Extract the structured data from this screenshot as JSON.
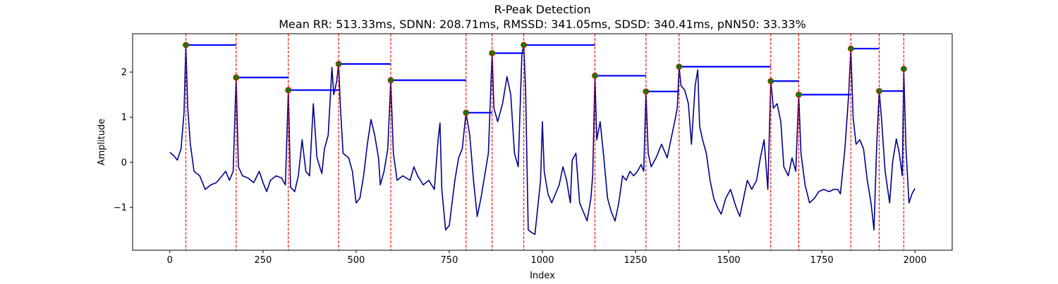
{
  "chart_data": {
    "type": "line",
    "title": "R-Peak Detection",
    "subtitle": "Mean RR: 513.33ms, SDNN: 208.71ms, RMSSD: 341.05ms, SDSD: 340.41ms, pNN50: 33.33%",
    "xlabel": "Index",
    "ylabel": "Amplitude",
    "xlim": [
      -100,
      2100
    ],
    "ylim": [
      -1.95,
      2.85
    ],
    "xticks": [
      0,
      250,
      500,
      750,
      1000,
      1250,
      1500,
      1750,
      2000
    ],
    "xtick_labels": [
      "0",
      "250",
      "500",
      "750",
      "1000",
      "1250",
      "1500",
      "1750",
      "2000"
    ],
    "yticks": [
      -1,
      0,
      1,
      2
    ],
    "ytick_labels": [
      "−1",
      "0",
      "1",
      "2"
    ],
    "grid": false,
    "colors": {
      "signal": "#00008b",
      "peaks": "#008000",
      "peak_lines": "#ff0000",
      "rr_segments": "#0000ff"
    },
    "signal_keypoints": [
      [
        0,
        0.22
      ],
      [
        10,
        0.15
      ],
      [
        20,
        0.05
      ],
      [
        30,
        0.3
      ],
      [
        38,
        1.1
      ],
      [
        43,
        2.6
      ],
      [
        48,
        1.2
      ],
      [
        55,
        0.4
      ],
      [
        65,
        -0.2
      ],
      [
        80,
        -0.3
      ],
      [
        95,
        -0.6
      ],
      [
        110,
        -0.5
      ],
      [
        125,
        -0.45
      ],
      [
        140,
        -0.3
      ],
      [
        150,
        -0.2
      ],
      [
        160,
        -0.4
      ],
      [
        170,
        -0.2
      ],
      [
        178,
        1.88
      ],
      [
        184,
        -0.1
      ],
      [
        195,
        -0.3
      ],
      [
        210,
        -0.35
      ],
      [
        225,
        -0.45
      ],
      [
        240,
        -0.2
      ],
      [
        250,
        -0.45
      ],
      [
        260,
        -0.65
      ],
      [
        270,
        -0.4
      ],
      [
        285,
        -0.3
      ],
      [
        300,
        -0.35
      ],
      [
        310,
        -0.5
      ],
      [
        318,
        1.6
      ],
      [
        324,
        -0.55
      ],
      [
        335,
        -0.65
      ],
      [
        345,
        -0.3
      ],
      [
        355,
        0.5
      ],
      [
        365,
        -0.2
      ],
      [
        375,
        -0.3
      ],
      [
        385,
        1.3
      ],
      [
        395,
        0.1
      ],
      [
        408,
        -0.25
      ],
      [
        415,
        0.3
      ],
      [
        425,
        0.6
      ],
      [
        435,
        2.1
      ],
      [
        440,
        1.5
      ],
      [
        448,
        1.8
      ],
      [
        453,
        2.18
      ],
      [
        458,
        1.2
      ],
      [
        465,
        0.2
      ],
      [
        480,
        0.1
      ],
      [
        490,
        -0.2
      ],
      [
        500,
        -0.9
      ],
      [
        510,
        -0.8
      ],
      [
        520,
        -0.3
      ],
      [
        530,
        0.4
      ],
      [
        540,
        0.95
      ],
      [
        550,
        0.6
      ],
      [
        560,
        0.1
      ],
      [
        565,
        -0.5
      ],
      [
        575,
        -0.2
      ],
      [
        585,
        0.3
      ],
      [
        593,
        1.82
      ],
      [
        600,
        0.2
      ],
      [
        610,
        -0.4
      ],
      [
        625,
        -0.3
      ],
      [
        645,
        -0.4
      ],
      [
        655,
        -0.1
      ],
      [
        665,
        -0.3
      ],
      [
        680,
        -0.5
      ],
      [
        695,
        -0.4
      ],
      [
        710,
        -0.6
      ],
      [
        720,
        0.5
      ],
      [
        725,
        0.87
      ],
      [
        730,
        -0.6
      ],
      [
        740,
        -1.5
      ],
      [
        750,
        -1.4
      ],
      [
        765,
        -0.4
      ],
      [
        775,
        0.1
      ],
      [
        785,
        0.3
      ],
      [
        795,
        1.1
      ],
      [
        805,
        0.6
      ],
      [
        815,
        -0.4
      ],
      [
        825,
        -1.2
      ],
      [
        835,
        -0.8
      ],
      [
        845,
        -0.3
      ],
      [
        855,
        0.2
      ],
      [
        865,
        2.42
      ],
      [
        870,
        1.2
      ],
      [
        880,
        0.9
      ],
      [
        893,
        1.3
      ],
      [
        905,
        1.9
      ],
      [
        915,
        1.5
      ],
      [
        925,
        0.2
      ],
      [
        935,
        -0.1
      ],
      [
        945,
        2.4
      ],
      [
        950,
        2.6
      ],
      [
        955,
        1.6
      ],
      [
        962,
        -1.5
      ],
      [
        970,
        -1.55
      ],
      [
        980,
        -1.6
      ],
      [
        995,
        -0.4
      ],
      [
        1000,
        0.9
      ],
      [
        1005,
        -0.2
      ],
      [
        1015,
        -0.7
      ],
      [
        1025,
        -0.9
      ],
      [
        1045,
        -0.5
      ],
      [
        1055,
        -0.1
      ],
      [
        1065,
        -0.4
      ],
      [
        1075,
        -0.9
      ],
      [
        1080,
        0.05
      ],
      [
        1090,
        0.2
      ],
      [
        1100,
        -0.9
      ],
      [
        1110,
        -1.1
      ],
      [
        1120,
        -1.3
      ],
      [
        1130,
        -0.8
      ],
      [
        1135,
        -0.3
      ],
      [
        1141,
        1.92
      ],
      [
        1146,
        0.5
      ],
      [
        1155,
        0.9
      ],
      [
        1165,
        0.1
      ],
      [
        1175,
        -0.8
      ],
      [
        1185,
        -1.1
      ],
      [
        1195,
        -1.3
      ],
      [
        1205,
        -0.9
      ],
      [
        1215,
        -0.3
      ],
      [
        1225,
        -0.4
      ],
      [
        1235,
        -0.2
      ],
      [
        1245,
        -0.3
      ],
      [
        1255,
        -0.2
      ],
      [
        1265,
        -0.05
      ],
      [
        1272,
        -0.2
      ],
      [
        1278,
        1.57
      ],
      [
        1284,
        0.2
      ],
      [
        1292,
        -0.1
      ],
      [
        1305,
        0.1
      ],
      [
        1320,
        0.4
      ],
      [
        1335,
        0.1
      ],
      [
        1345,
        0.5
      ],
      [
        1355,
        0.9
      ],
      [
        1362,
        1.2
      ],
      [
        1367,
        2.12
      ],
      [
        1372,
        1.7
      ],
      [
        1382,
        1.6
      ],
      [
        1392,
        1.3
      ],
      [
        1400,
        0.4
      ],
      [
        1410,
        1.7
      ],
      [
        1417,
        2.05
      ],
      [
        1422,
        0.8
      ],
      [
        1430,
        0.5
      ],
      [
        1440,
        0.2
      ],
      [
        1450,
        -0.4
      ],
      [
        1460,
        -0.8
      ],
      [
        1470,
        -1.0
      ],
      [
        1480,
        -1.15
      ],
      [
        1492,
        -0.8
      ],
      [
        1505,
        -0.6
      ],
      [
        1520,
        -1.0
      ],
      [
        1530,
        -1.2
      ],
      [
        1540,
        -0.8
      ],
      [
        1550,
        -0.4
      ],
      [
        1562,
        -0.6
      ],
      [
        1575,
        -0.4
      ],
      [
        1585,
        0.1
      ],
      [
        1595,
        0.5
      ],
      [
        1605,
        -0.6
      ],
      [
        1613,
        1.8
      ],
      [
        1620,
        1.2
      ],
      [
        1630,
        1.3
      ],
      [
        1640,
        0.9
      ],
      [
        1648,
        -0.1
      ],
      [
        1660,
        -0.3
      ],
      [
        1670,
        0.1
      ],
      [
        1680,
        -0.2
      ],
      [
        1688,
        1.5
      ],
      [
        1694,
        0.2
      ],
      [
        1705,
        -0.5
      ],
      [
        1717,
        -0.9
      ],
      [
        1730,
        -0.8
      ],
      [
        1742,
        -0.65
      ],
      [
        1755,
        -0.6
      ],
      [
        1770,
        -0.65
      ],
      [
        1782,
        -0.6
      ],
      [
        1793,
        -0.6
      ],
      [
        1800,
        -0.7
      ],
      [
        1812,
        0.3
      ],
      [
        1822,
        1.5
      ],
      [
        1828,
        2.52
      ],
      [
        1834,
        1.0
      ],
      [
        1842,
        0.4
      ],
      [
        1852,
        0.5
      ],
      [
        1862,
        0.3
      ],
      [
        1872,
        -0.4
      ],
      [
        1882,
        -0.9
      ],
      [
        1890,
        -1.5
      ],
      [
        1897,
        0.3
      ],
      [
        1904,
        1.58
      ],
      [
        1910,
        1.0
      ],
      [
        1920,
        -0.2
      ],
      [
        1932,
        -0.9
      ],
      [
        1940,
        0.0
      ],
      [
        1950,
        0.52
      ],
      [
        1958,
        0.2
      ],
      [
        1966,
        -0.3
      ],
      [
        1970,
        2.07
      ],
      [
        1976,
        0.3
      ],
      [
        1984,
        -0.9
      ],
      [
        1992,
        -0.7
      ],
      [
        2000,
        -0.58
      ]
    ],
    "peaks": [
      {
        "index": 43,
        "amplitude": 2.6,
        "rr_end": 178
      },
      {
        "index": 178,
        "amplitude": 1.88,
        "rr_end": 318
      },
      {
        "index": 318,
        "amplitude": 1.6,
        "rr_end": 453
      },
      {
        "index": 453,
        "amplitude": 2.18,
        "rr_end": 593
      },
      {
        "index": 593,
        "amplitude": 1.82,
        "rr_end": 795
      },
      {
        "index": 795,
        "amplitude": 1.1,
        "rr_end": 865
      },
      {
        "index": 865,
        "amplitude": 2.42,
        "rr_end": 950
      },
      {
        "index": 950,
        "amplitude": 2.6,
        "rr_end": 1141
      },
      {
        "index": 1141,
        "amplitude": 1.92,
        "rr_end": 1278
      },
      {
        "index": 1278,
        "amplitude": 1.57,
        "rr_end": 1367
      },
      {
        "index": 1367,
        "amplitude": 2.12,
        "rr_end": 1613
      },
      {
        "index": 1613,
        "amplitude": 1.8,
        "rr_end": 1688
      },
      {
        "index": 1688,
        "amplitude": 1.5,
        "rr_end": 1828
      },
      {
        "index": 1828,
        "amplitude": 2.52,
        "rr_end": 1904
      },
      {
        "index": 1904,
        "amplitude": 1.58,
        "rr_end": 1970
      },
      {
        "index": 1970,
        "amplitude": 2.07,
        "rr_end": null
      }
    ]
  }
}
